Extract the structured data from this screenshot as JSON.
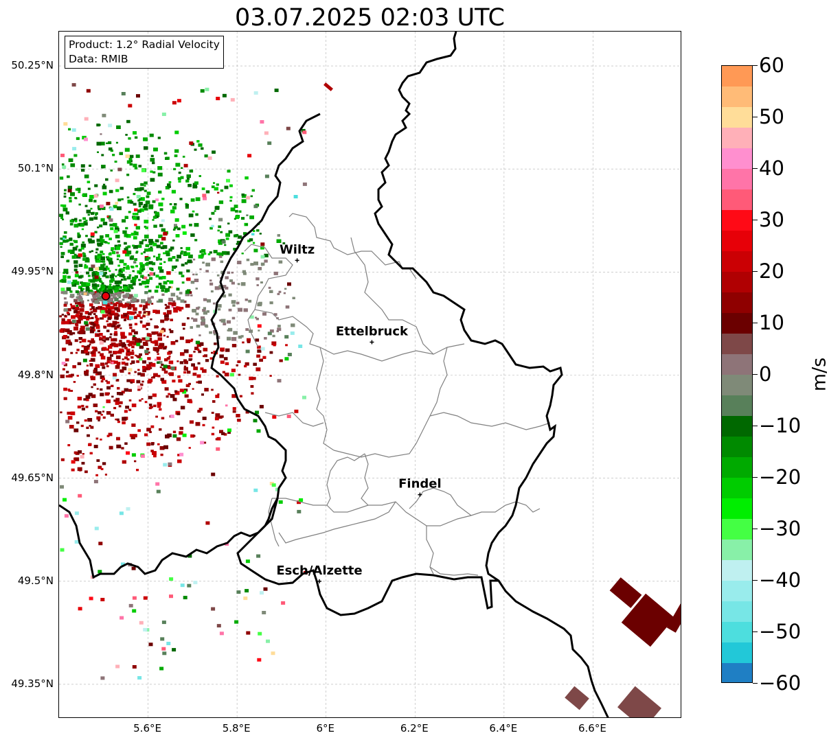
{
  "title": "03.07.2025 02:03 UTC",
  "info": {
    "line1": "Product: 1.2° Radial Velocity",
    "line2": "Data: RMIB"
  },
  "lat_ticks": [
    "50.25°N",
    "50.1°N",
    "49.95°N",
    "49.8°N",
    "49.65°N",
    "49.5°N",
    "49.35°N"
  ],
  "lon_ticks": [
    "5.6°E",
    "5.8°E",
    "6°E",
    "6.2°E",
    "6.4°E",
    "6.6°E"
  ],
  "cities": [
    {
      "name": "Wiltz",
      "lon": 5.935,
      "lat": 49.967
    },
    {
      "name": "Ettelbruck",
      "lon": 6.103,
      "lat": 49.848
    },
    {
      "name": "Findel",
      "lon": 6.211,
      "lat": 49.626
    },
    {
      "name": "Esch/Alzette",
      "lon": 5.985,
      "lat": 49.5
    }
  ],
  "radar": {
    "lon": 5.505,
    "lat": 49.915,
    "color": "#e8000b"
  },
  "colorbar": {
    "label": "m/s",
    "ticks": [
      "60",
      "50",
      "40",
      "30",
      "20",
      "10",
      "0",
      "−10",
      "−20",
      "−30",
      "−40",
      "−50",
      "−60"
    ],
    "range": [
      -60,
      60
    ],
    "stops": [
      {
        "from": 60,
        "to": 56,
        "color": "#ff9955"
      },
      {
        "from": 56,
        "to": 52,
        "color": "#ffbb77"
      },
      {
        "from": 52,
        "to": 48,
        "color": "#ffdd99"
      },
      {
        "from": 48,
        "to": 44,
        "color": "#ffb0b8"
      },
      {
        "from": 44,
        "to": 40,
        "color": "#ff8fcf"
      },
      {
        "from": 40,
        "to": 36,
        "color": "#ff74a8"
      },
      {
        "from": 36,
        "to": 32,
        "color": "#ff5a78"
      },
      {
        "from": 32,
        "to": 28,
        "color": "#ff0a16"
      },
      {
        "from": 28,
        "to": 24,
        "color": "#e70008"
      },
      {
        "from": 24,
        "to": 20,
        "color": "#cb0004"
      },
      {
        "from": 20,
        "to": 16,
        "color": "#b00002"
      },
      {
        "from": 16,
        "to": 12,
        "color": "#8f0000"
      },
      {
        "from": 12,
        "to": 8,
        "color": "#6b0000"
      },
      {
        "from": 8,
        "to": 4,
        "color": "#7e4848"
      },
      {
        "from": 4,
        "to": 0,
        "color": "#8e7478"
      },
      {
        "from": 0,
        "to": -4,
        "color": "#7f8a78"
      },
      {
        "from": -4,
        "to": -8,
        "color": "#58805a"
      },
      {
        "from": -8,
        "to": -12,
        "color": "#006800"
      },
      {
        "from": -12,
        "to": -16,
        "color": "#008a00"
      },
      {
        "from": -16,
        "to": -20,
        "color": "#00aa00"
      },
      {
        "from": -20,
        "to": -24,
        "color": "#00cc00"
      },
      {
        "from": -24,
        "to": -28,
        "color": "#00ee00"
      },
      {
        "from": -28,
        "to": -32,
        "color": "#44ff44"
      },
      {
        "from": -32,
        "to": -36,
        "color": "#88f0a8"
      },
      {
        "from": -36,
        "to": -40,
        "color": "#bff0f0"
      },
      {
        "from": -40,
        "to": -44,
        "color": "#99ecec"
      },
      {
        "from": -44,
        "to": -48,
        "color": "#77e6e6"
      },
      {
        "from": -48,
        "to": -52,
        "color": "#4ddede"
      },
      {
        "from": -52,
        "to": -56,
        "color": "#22c8d8"
      },
      {
        "from": -56,
        "to": -60,
        "color": "#1f7fc4"
      }
    ]
  },
  "map_extent": {
    "lon": [
      5.4,
      6.8
    ],
    "lat": [
      49.3,
      50.3
    ]
  },
  "colors": {
    "border": "#000000",
    "canton": "#808080",
    "grid": "#b0b0b0"
  }
}
